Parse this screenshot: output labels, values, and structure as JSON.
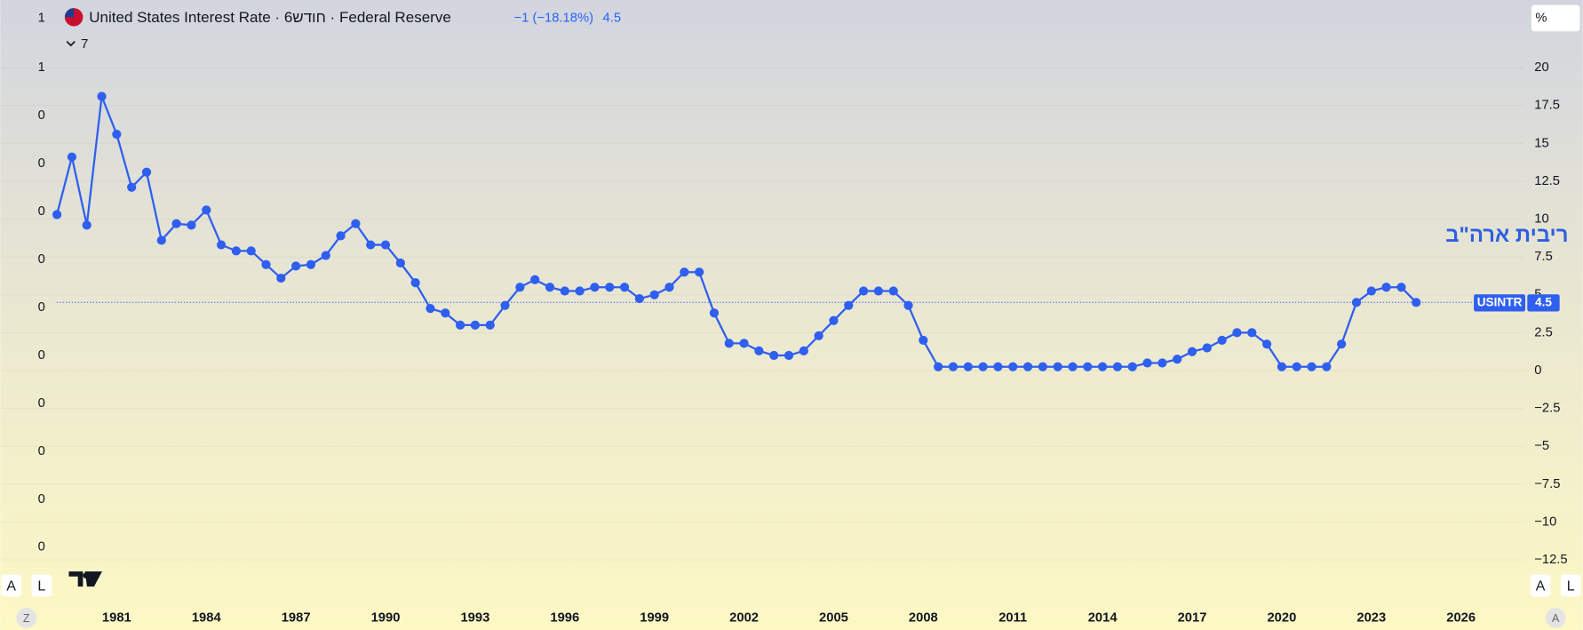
{
  "chart_data": {
    "type": "line",
    "title": "United States Interest Rate · חודש6 · Federal Reserve",
    "change_label": "−1 (−18.18%)",
    "last_label": "4.5",
    "annotation": "ריבית ארה\"ב",
    "symbol": "USINTR",
    "interval_count": "7",
    "unit_button": "%",
    "left_axis_labels": [
      "1",
      "1",
      "0",
      "0",
      "0",
      "0",
      "0",
      "0",
      "0",
      "0",
      "0",
      "0"
    ],
    "x": [
      1979,
      1979.5,
      1980,
      1980.5,
      1981,
      1981.5,
      1982,
      1982.5,
      1983,
      1983.5,
      1984,
      1984.5,
      1985,
      1985.5,
      1986,
      1986.5,
      1987,
      1987.5,
      1988,
      1988.5,
      1989,
      1989.5,
      1990,
      1990.5,
      1991,
      1991.5,
      1992,
      1992.5,
      1993,
      1993.5,
      1994,
      1994.5,
      1995,
      1995.5,
      1996,
      1996.5,
      1997,
      1997.5,
      1998,
      1998.5,
      1999,
      1999.5,
      2000,
      2000.5,
      2001,
      2001.5,
      2002,
      2002.5,
      2003,
      2003.5,
      2004,
      2004.5,
      2005,
      2005.5,
      2006,
      2006.5,
      2007,
      2007.5,
      2008,
      2008.5,
      2009,
      2009.5,
      2010,
      2010.5,
      2011,
      2011.5,
      2012,
      2012.5,
      2013,
      2013.5,
      2014,
      2014.5,
      2015,
      2015.5,
      2016,
      2016.5,
      2017,
      2017.5,
      2018,
      2018.5,
      2019,
      2019.5,
      2020,
      2020.5,
      2021,
      2021.5,
      2022,
      2022.5,
      2023,
      2023.5,
      2024,
      2024.5
    ],
    "series": [
      {
        "name": "USINTR",
        "color": "#2f5ff0",
        "values": [
          10.3,
          14.1,
          9.6,
          18.1,
          15.6,
          12.1,
          13.1,
          8.6,
          9.7,
          9.6,
          10.6,
          8.3,
          7.9,
          7.9,
          7.0,
          6.1,
          6.9,
          7.0,
          7.6,
          8.9,
          9.7,
          8.3,
          8.3,
          7.1,
          5.8,
          4.1,
          3.8,
          3.0,
          3.0,
          3.0,
          4.3,
          5.5,
          6.0,
          5.5,
          5.25,
          5.25,
          5.5,
          5.5,
          5.5,
          4.75,
          5.0,
          5.5,
          6.5,
          6.5,
          3.8,
          1.8,
          1.8,
          1.3,
          1.0,
          1.0,
          1.3,
          2.3,
          3.3,
          4.3,
          5.25,
          5.25,
          5.25,
          4.3,
          2.0,
          0.25,
          0.25,
          0.25,
          0.25,
          0.25,
          0.25,
          0.25,
          0.25,
          0.25,
          0.25,
          0.25,
          0.25,
          0.25,
          0.25,
          0.5,
          0.5,
          0.75,
          1.25,
          1.5,
          2.0,
          2.5,
          2.5,
          1.75,
          0.25,
          0.25,
          0.25,
          0.25,
          1.75,
          4.5,
          5.25,
          5.5,
          5.5,
          4.5
        ]
      }
    ],
    "xlim": [
      1977.1,
      2028.05
    ],
    "xticks": [
      1981,
      1984,
      1987,
      1990,
      1993,
      1996,
      1999,
      2002,
      2005,
      2008,
      2011,
      2014,
      2017,
      2020,
      2023,
      2026
    ],
    "ylim": [
      -13.53,
      20.8
    ],
    "yticks": [
      20,
      17.5,
      15,
      12.5,
      10,
      7.5,
      5,
      2.5,
      0,
      {
        "value": -2.5,
        "label": "−2.5"
      },
      {
        "value": -5,
        "label": "−5"
      },
      {
        "value": -7.5,
        "label": "−7.5"
      },
      {
        "value": -10,
        "label": "−10"
      },
      {
        "value": -12.5,
        "label": "−12.5"
      }
    ],
    "grid": true
  },
  "ui": {
    "buttons_left": [
      "A",
      "L"
    ],
    "buttons_right": [
      "A",
      "L"
    ],
    "corner_left": "Z",
    "corner_right": "A"
  }
}
